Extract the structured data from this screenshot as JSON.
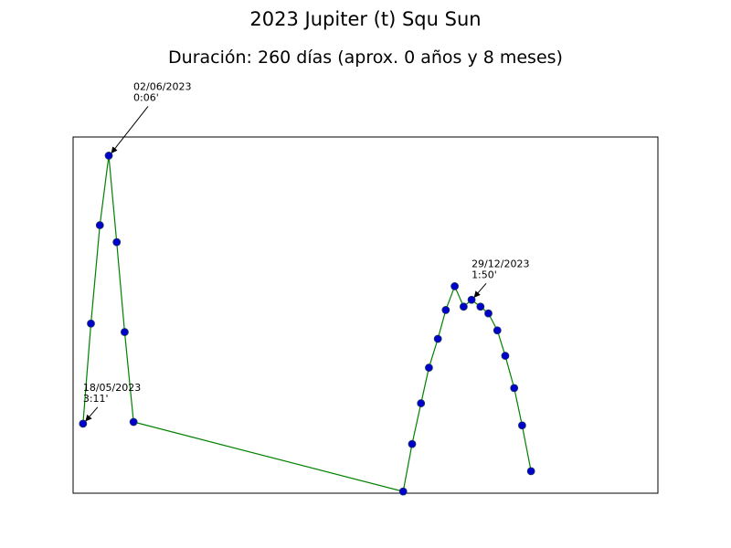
{
  "chart_data": {
    "type": "line",
    "title": "2023 Jupiter (t) Squ Sun",
    "subtitle": "Duración: 260 días (aprox. 0 años y 8 meses)",
    "xlabel": "",
    "ylabel": "",
    "grid": false,
    "axes_ticks_visible": false,
    "line_color": "#008000",
    "marker_color": "#0000cd",
    "marker_edge_color": "#1a3a5a",
    "x_unit": "day_index",
    "xlim": [
      -10,
      580
    ],
    "ylim": [
      0,
      210
    ],
    "series": [
      {
        "points": [
          {
            "x": 0,
            "y": 41
          },
          {
            "x": 8,
            "y": 100
          },
          {
            "x": 17,
            "y": 158
          },
          {
            "x": 26,
            "y": 199
          },
          {
            "x": 34,
            "y": 148
          },
          {
            "x": 42,
            "y": 95
          },
          {
            "x": 51,
            "y": 42
          },
          {
            "x": 323,
            "y": 1
          },
          {
            "x": 332,
            "y": 29
          },
          {
            "x": 341,
            "y": 53
          },
          {
            "x": 349,
            "y": 74
          },
          {
            "x": 358,
            "y": 91
          },
          {
            "x": 366,
            "y": 108
          },
          {
            "x": 375,
            "y": 122
          },
          {
            "x": 384,
            "y": 110
          },
          {
            "x": 392,
            "y": 114
          },
          {
            "x": 401,
            "y": 110
          },
          {
            "x": 409,
            "y": 106
          },
          {
            "x": 418,
            "y": 96
          },
          {
            "x": 426,
            "y": 81
          },
          {
            "x": 435,
            "y": 62
          },
          {
            "x": 443,
            "y": 40
          },
          {
            "x": 452,
            "y": 13
          }
        ]
      }
    ],
    "annotations": [
      {
        "point_index": 0,
        "date": "18/05/2023",
        "value": "3:11'"
      },
      {
        "point_index": 3,
        "date": "02/06/2023",
        "value": "0:06'"
      },
      {
        "point_index": 15,
        "date": "29/12/2023",
        "value": "1:50'"
      }
    ]
  }
}
